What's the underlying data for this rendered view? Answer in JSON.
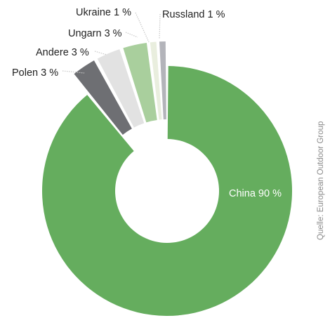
{
  "chart_data": {
    "type": "pie",
    "title": "",
    "slices": [
      {
        "label": "China",
        "value": 90,
        "display": "China 90 %",
        "color": "#65ad5e"
      },
      {
        "label": "Polen",
        "value": 3,
        "display": "Polen 3 %",
        "color": "#6e6f73"
      },
      {
        "label": "Andere",
        "value": 3,
        "display": "Andere 3 %",
        "color": "#e2e2e2"
      },
      {
        "label": "Ungarn",
        "value": 3,
        "display": "Ungarn 3 %",
        "color": "#a9cf9d"
      },
      {
        "label": "Ukraine",
        "value": 1,
        "display": "Ukraine 1 %",
        "color": "#e9eede"
      },
      {
        "label": "Russland",
        "value": 1,
        "display": "Russland 1 %",
        "color": "#b3b4ba"
      }
    ],
    "source": "Quelle: European Outdoor Group"
  }
}
